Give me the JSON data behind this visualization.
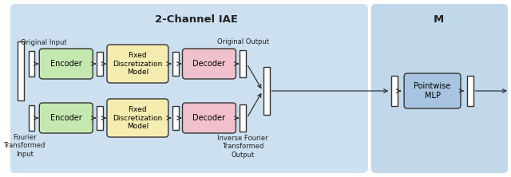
{
  "fig_width": 6.4,
  "fig_height": 2.22,
  "dpi": 100,
  "bg_main": "#cce0f0",
  "bg_module": "#c0d8ea",
  "title_main": "2-Channel IAE",
  "title_module": "M",
  "encoder_color": "#c5e8b0",
  "fdm_color": "#f5edb0",
  "decoder_color": "#f0c0cc",
  "mlp_color": "#a8c4e0",
  "encoder_label": "Encoder",
  "fdm_label": "Fixed\nDiscretization\nModel",
  "decoder_label": "Decoder",
  "mlp_label": "Pointwise\nMLP",
  "label_original_input": "Original Input",
  "label_fourier_input": "Fourier\nTransformed\nInput",
  "label_original_output": "Original Output",
  "label_inverse_fourier": "Inverse Fourier\nTransformed\nOutput",
  "box_edge_color": "#333333",
  "arrow_color": "#333333",
  "font_size_box": 7.0,
  "font_size_title": 9.5,
  "font_size_label": 6.0
}
